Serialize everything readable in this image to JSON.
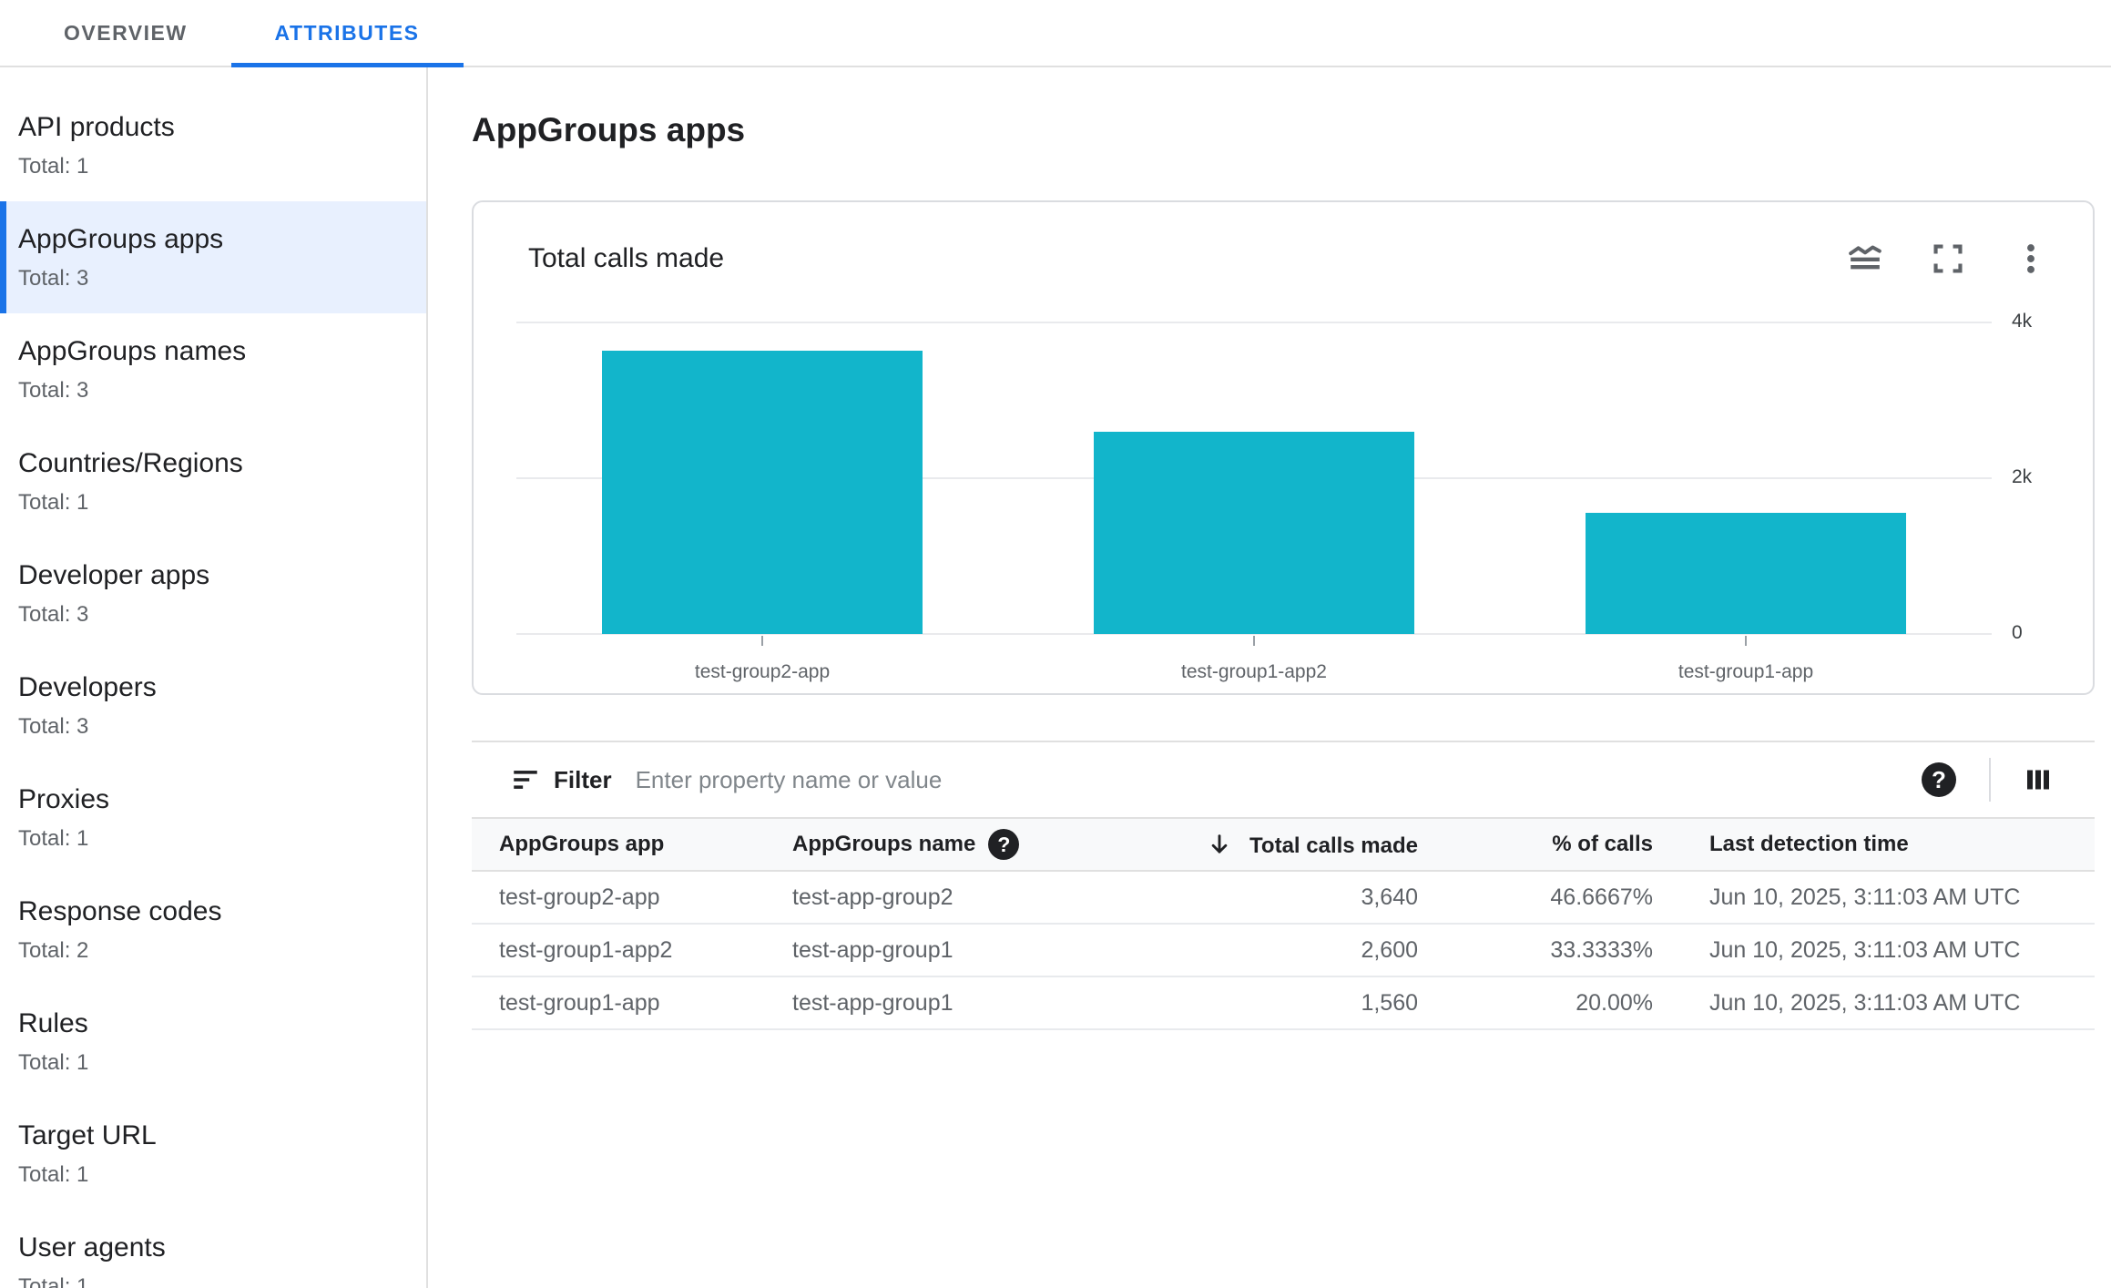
{
  "tabs": [
    {
      "label": "OVERVIEW",
      "active": false
    },
    {
      "label": "ATTRIBUTES",
      "active": true
    }
  ],
  "sidebar": {
    "items": [
      {
        "label": "API products",
        "total": "Total: 1",
        "selected": false
      },
      {
        "label": "AppGroups apps",
        "total": "Total: 3",
        "selected": true
      },
      {
        "label": "AppGroups names",
        "total": "Total: 3",
        "selected": false
      },
      {
        "label": "Countries/Regions",
        "total": "Total: 1",
        "selected": false
      },
      {
        "label": "Developer apps",
        "total": "Total: 3",
        "selected": false
      },
      {
        "label": "Developers",
        "total": "Total: 3",
        "selected": false
      },
      {
        "label": "Proxies",
        "total": "Total: 1",
        "selected": false
      },
      {
        "label": "Response codes",
        "total": "Total: 2",
        "selected": false
      },
      {
        "label": "Rules",
        "total": "Total: 1",
        "selected": false
      },
      {
        "label": "Target URL",
        "total": "Total: 1",
        "selected": false
      },
      {
        "label": "User agents",
        "total": "Total: 1",
        "selected": false
      }
    ]
  },
  "page": {
    "title": "AppGroups apps"
  },
  "chart": {
    "title": "Total calls made",
    "icons": [
      "stacked-chart-icon",
      "fullscreen-icon",
      "more-options-icon"
    ]
  },
  "chart_data": {
    "type": "bar",
    "title": "Total calls made",
    "categories": [
      "test-group2-app",
      "test-group1-app2",
      "test-group1-app"
    ],
    "values": [
      3640,
      2600,
      1560
    ],
    "ylim": [
      0,
      4000
    ],
    "yticks": [
      {
        "value": 4000,
        "label": "4k"
      },
      {
        "value": 2000,
        "label": "2k"
      },
      {
        "value": 0,
        "label": "0"
      }
    ],
    "bar_color": "#12B5CB",
    "grid": true,
    "legend": "none",
    "y_axis_position": "right"
  },
  "filter": {
    "label": "Filter",
    "placeholder": "Enter property name or value"
  },
  "icons": {
    "help_glyph": "?"
  },
  "table": {
    "columns": [
      "AppGroups app",
      "AppGroups name",
      "Total calls made",
      "% of calls",
      "Last detection time"
    ],
    "sorted_column": "Total calls made",
    "sort_direction": "descending",
    "rows": [
      {
        "app": "test-group2-app",
        "name": "test-app-group2",
        "calls": "3,640",
        "percent": "46.6667%",
        "last_detection": "Jun 10, 2025, 3:11:03 AM UTC"
      },
      {
        "app": "test-group1-app2",
        "name": "test-app-group1",
        "calls": "2,600",
        "percent": "33.3333%",
        "last_detection": "Jun 10, 2025, 3:11:03 AM UTC"
      },
      {
        "app": "test-group1-app",
        "name": "test-app-group1",
        "calls": "1,560",
        "percent": "20.00%",
        "last_detection": "Jun 10, 2025, 3:11:03 AM UTC"
      }
    ]
  },
  "colors": {
    "accent": "#1A73E8",
    "bar": "#12B5CB",
    "selected_item_bg": "#E8F0FE",
    "border": "#DADCE0",
    "table_header_bg": "#F8F9FA"
  }
}
